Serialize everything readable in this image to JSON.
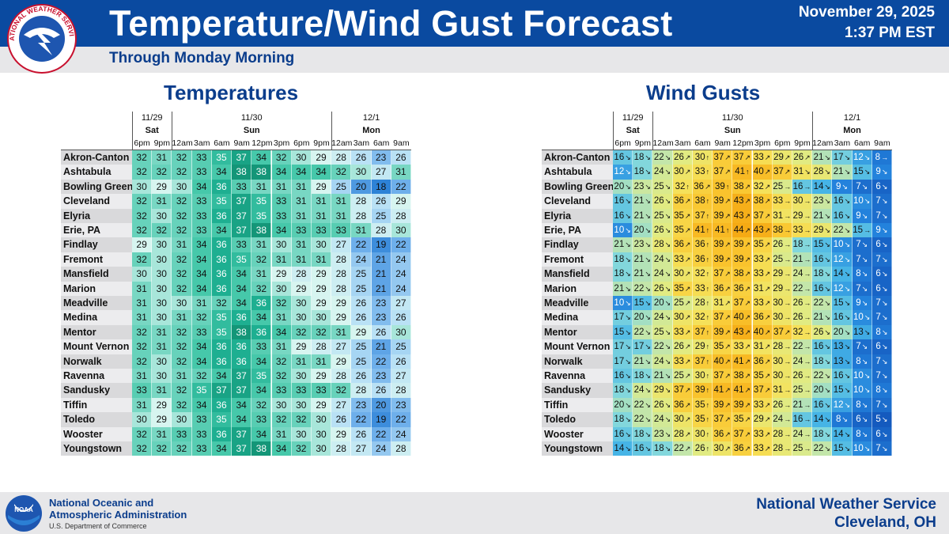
{
  "header": {
    "title": "Temperature/Wind Gust Forecast",
    "date": "November 29, 2025",
    "time": "1:37 PM EST",
    "subtitle": "Through Monday Morning",
    "logo_text": "NATIONAL WEATHER SERVICE"
  },
  "sections": {
    "temps_title": "Temperatures",
    "gusts_title": "Wind Gusts"
  },
  "days": [
    {
      "date": "11/29",
      "day": "Sat",
      "span": 2
    },
    {
      "date": "11/30",
      "day": "Sun",
      "span": 8
    },
    {
      "date": "12/1",
      "day": "Mon",
      "span": 4
    }
  ],
  "hours": [
    "6pm",
    "9pm",
    "12am",
    "3am",
    "6am",
    "9am",
    "12pm",
    "3pm",
    "6pm",
    "9pm",
    "12am",
    "3am",
    "6am",
    "9am"
  ],
  "cities": [
    "Akron-Canton",
    "Ashtabula",
    "Bowling Green",
    "Cleveland",
    "Elyria",
    "Erie, PA",
    "Findlay",
    "Fremont",
    "Mansfield",
    "Marion",
    "Meadville",
    "Medina",
    "Mentor",
    "Mount Vernon",
    "Norwalk",
    "Ravenna",
    "Sandusky",
    "Tiffin",
    "Toledo",
    "Wooster",
    "Youngstown"
  ],
  "temperatures": [
    [
      32,
      31,
      32,
      33,
      35,
      37,
      34,
      32,
      30,
      29,
      28,
      26,
      23,
      26
    ],
    [
      32,
      32,
      32,
      33,
      34,
      38,
      38,
      34,
      34,
      34,
      32,
      30,
      27,
      31
    ],
    [
      30,
      29,
      30,
      34,
      36,
      33,
      31,
      31,
      31,
      29,
      25,
      20,
      18,
      22
    ],
    [
      32,
      31,
      32,
      33,
      35,
      37,
      35,
      33,
      31,
      31,
      31,
      28,
      26,
      29
    ],
    [
      32,
      30,
      32,
      33,
      36,
      37,
      35,
      33,
      31,
      31,
      31,
      28,
      25,
      28
    ],
    [
      32,
      32,
      32,
      33,
      34,
      37,
      38,
      34,
      33,
      33,
      33,
      31,
      28,
      30
    ],
    [
      29,
      30,
      31,
      34,
      36,
      33,
      31,
      30,
      31,
      30,
      27,
      22,
      19,
      22
    ],
    [
      32,
      30,
      32,
      34,
      36,
      35,
      32,
      31,
      31,
      31,
      28,
      24,
      21,
      24
    ],
    [
      30,
      30,
      32,
      34,
      36,
      34,
      31,
      29,
      28,
      29,
      28,
      25,
      21,
      24
    ],
    [
      31,
      30,
      32,
      34,
      36,
      34,
      32,
      30,
      29,
      29,
      28,
      25,
      21,
      24
    ],
    [
      31,
      30,
      30,
      31,
      32,
      34,
      36,
      32,
      30,
      29,
      29,
      26,
      23,
      27
    ],
    [
      31,
      30,
      31,
      32,
      35,
      36,
      34,
      31,
      30,
      30,
      29,
      26,
      23,
      26
    ],
    [
      32,
      31,
      32,
      33,
      35,
      38,
      36,
      34,
      32,
      32,
      31,
      29,
      26,
      30
    ],
    [
      32,
      31,
      32,
      34,
      36,
      36,
      33,
      31,
      29,
      28,
      27,
      25,
      21,
      25
    ],
    [
      32,
      30,
      32,
      34,
      36,
      36,
      34,
      32,
      31,
      31,
      29,
      25,
      22,
      26
    ],
    [
      31,
      30,
      31,
      32,
      34,
      37,
      35,
      32,
      30,
      29,
      28,
      26,
      23,
      27
    ],
    [
      33,
      31,
      32,
      35,
      37,
      37,
      34,
      33,
      33,
      33,
      32,
      28,
      26,
      28
    ],
    [
      31,
      29,
      32,
      34,
      36,
      34,
      32,
      30,
      30,
      29,
      27,
      23,
      20,
      23
    ],
    [
      30,
      29,
      30,
      33,
      35,
      34,
      33,
      32,
      32,
      30,
      26,
      22,
      19,
      22
    ],
    [
      32,
      31,
      33,
      33,
      36,
      37,
      34,
      31,
      30,
      30,
      29,
      26,
      22,
      24
    ],
    [
      32,
      32,
      32,
      33,
      34,
      37,
      38,
      34,
      32,
      30,
      28,
      27,
      24,
      28
    ]
  ],
  "gusts": [
    [
      16,
      18,
      22,
      26,
      30,
      37,
      37,
      33,
      29,
      26,
      21,
      17,
      12,
      8
    ],
    [
      12,
      18,
      24,
      30,
      33,
      37,
      41,
      40,
      37,
      31,
      28,
      21,
      15,
      9
    ],
    [
      20,
      23,
      25,
      32,
      36,
      39,
      38,
      32,
      25,
      16,
      14,
      9,
      7,
      6
    ],
    [
      16,
      21,
      26,
      36,
      38,
      39,
      43,
      38,
      33,
      30,
      23,
      16,
      10,
      7
    ],
    [
      16,
      21,
      25,
      35,
      37,
      39,
      43,
      37,
      31,
      29,
      21,
      16,
      9,
      7
    ],
    [
      10,
      20,
      26,
      35,
      41,
      41,
      44,
      43,
      38,
      33,
      29,
      22,
      15,
      9
    ],
    [
      21,
      23,
      28,
      36,
      36,
      39,
      39,
      35,
      26,
      18,
      15,
      10,
      7,
      6
    ],
    [
      18,
      21,
      24,
      33,
      36,
      39,
      39,
      33,
      25,
      21,
      16,
      12,
      7,
      7
    ],
    [
      18,
      21,
      24,
      30,
      32,
      37,
      38,
      33,
      29,
      24,
      18,
      14,
      8,
      6
    ],
    [
      21,
      22,
      26,
      35,
      33,
      36,
      36,
      31,
      29,
      22,
      16,
      12,
      7,
      6
    ],
    [
      10,
      15,
      20,
      25,
      28,
      31,
      37,
      33,
      30,
      26,
      22,
      15,
      9,
      7
    ],
    [
      17,
      20,
      24,
      30,
      32,
      37,
      40,
      36,
      30,
      26,
      21,
      16,
      10,
      7
    ],
    [
      15,
      22,
      25,
      33,
      37,
      39,
      43,
      40,
      37,
      32,
      26,
      20,
      13,
      8
    ],
    [
      17,
      17,
      22,
      26,
      29,
      35,
      33,
      31,
      28,
      22,
      16,
      13,
      7,
      6
    ],
    [
      17,
      21,
      24,
      33,
      37,
      40,
      41,
      36,
      30,
      24,
      18,
      13,
      8,
      7
    ],
    [
      16,
      18,
      21,
      25,
      30,
      37,
      38,
      35,
      30,
      26,
      22,
      16,
      10,
      7
    ],
    [
      18,
      24,
      29,
      37,
      39,
      41,
      41,
      37,
      31,
      25,
      20,
      15,
      10,
      8
    ],
    [
      20,
      22,
      26,
      36,
      35,
      39,
      39,
      33,
      26,
      21,
      16,
      12,
      8,
      7
    ],
    [
      18,
      22,
      24,
      30,
      35,
      37,
      35,
      29,
      24,
      16,
      14,
      8,
      6,
      5
    ],
    [
      16,
      18,
      23,
      28,
      30,
      36,
      37,
      33,
      28,
      24,
      18,
      14,
      8,
      6
    ],
    [
      14,
      16,
      18,
      22,
      26,
      30,
      36,
      33,
      28,
      25,
      22,
      15,
      10,
      7
    ]
  ],
  "gust_arrow_rows": [
    [
      "↘",
      "↘",
      "↘",
      "↗",
      "↑",
      "↗",
      "↗",
      "↗",
      "↗",
      "↗",
      "↘",
      "↘",
      "↘",
      "→"
    ],
    [
      "↘",
      "↘",
      "↘",
      "↗",
      "↑",
      "↗",
      "↑",
      "↗",
      "↗",
      "↘",
      "↘",
      "↘",
      "↘",
      "↘"
    ],
    [
      "↘",
      "↘",
      "↘",
      "↑",
      "↗",
      "↑",
      "↗",
      "↗",
      "→",
      "→",
      "↘",
      "↘",
      "↘",
      "↘"
    ],
    [
      "↘",
      "↘",
      "↘",
      "↗",
      "↑",
      "↗",
      "↗",
      "↗",
      "→",
      "→",
      "↘",
      "↘",
      "↘",
      "↘"
    ],
    [
      "↘",
      "↘",
      "↘",
      "↗",
      "↑",
      "↗",
      "↗",
      "↗",
      "→",
      "→",
      "↘",
      "↘",
      "↘",
      "↘"
    ],
    [
      "↘",
      "↘",
      "↘",
      "↗",
      "↑",
      "↑",
      "↗",
      "↗",
      "→",
      "→",
      "↘",
      "↘",
      "→",
      "↘"
    ],
    [
      "↘",
      "↘",
      "↘",
      "↗",
      "↑",
      "↗",
      "↗",
      "↗",
      "→",
      "→",
      "↘",
      "↘",
      "↘",
      "↘"
    ],
    [
      "↘",
      "↘",
      "↘",
      "↗",
      "↑",
      "↗",
      "↗",
      "↗",
      "→",
      "→",
      "↘",
      "↘",
      "↘",
      "↘"
    ],
    [
      "↘",
      "↘",
      "↘",
      "↗",
      "↑",
      "↗",
      "↗",
      "↗",
      "→",
      "→",
      "↘",
      "↘",
      "↘",
      "↘"
    ],
    [
      "↘",
      "↘",
      "↘",
      "↗",
      "↑",
      "↗",
      "↗",
      "↗",
      "→",
      "→",
      "↘",
      "↘",
      "↘",
      "↘"
    ],
    [
      "↘",
      "↘",
      "↘",
      "↗",
      "↑",
      "↗",
      "↗",
      "↗",
      "→",
      "→",
      "↘",
      "↘",
      "↘",
      "↘"
    ],
    [
      "↘",
      "↘",
      "↘",
      "↗",
      "↑",
      "↗",
      "↗",
      "↗",
      "→",
      "→",
      "↘",
      "↘",
      "↘",
      "↘"
    ],
    [
      "↘",
      "↘",
      "↘",
      "↗",
      "↑",
      "↗",
      "↗",
      "↗",
      "↗",
      "→",
      "↘",
      "↘",
      "↘",
      "↘"
    ],
    [
      "↘",
      "↘",
      "↘",
      "↗",
      "↑",
      "↗",
      "↗",
      "↗",
      "→",
      "→",
      "↘",
      "↘",
      "↘",
      "↘"
    ],
    [
      "↘",
      "↘",
      "↘",
      "↗",
      "↑",
      "↗",
      "↗",
      "↗",
      "→",
      "→",
      "↘",
      "↘",
      "↘",
      "↘"
    ],
    [
      "↘",
      "↘",
      "↘",
      "↗",
      "↑",
      "↗",
      "↗",
      "↗",
      "→",
      "→",
      "↘",
      "↘",
      "↘",
      "↘"
    ],
    [
      "↘",
      "↘",
      "↘",
      "↗",
      "↑",
      "↗",
      "↗",
      "↗",
      "→",
      "→",
      "↘",
      "↘",
      "↘",
      "↘"
    ],
    [
      "↘",
      "↘",
      "↘",
      "↗",
      "↑",
      "↗",
      "↗",
      "↗",
      "→",
      "→",
      "↘",
      "↘",
      "↘",
      "↘"
    ],
    [
      "↘",
      "↘",
      "↘",
      "↗",
      "↑",
      "↗",
      "↗",
      "↗",
      "→",
      "→",
      "↘",
      "↘",
      "↘",
      "↘"
    ],
    [
      "↘",
      "↘",
      "↘",
      "↗",
      "↑",
      "↗",
      "↗",
      "↗",
      "→",
      "→",
      "↘",
      "↘",
      "↘",
      "↘"
    ],
    [
      "↘",
      "↘",
      "↘",
      "↗",
      "↑",
      "↗",
      "↗",
      "↗",
      "→",
      "→",
      "↘",
      "↘",
      "↘",
      "↘"
    ]
  ],
  "colors": {
    "header_bg": "#0a4aa0",
    "title_text": "#ffffff",
    "accent_text": "#0b3d8c",
    "band_bg": "#e7e7e9"
  },
  "footer": {
    "noaa_line1": "National Oceanic and",
    "noaa_line2": "Atmospheric Administration",
    "noaa_dept": "U.S. Department of Commerce",
    "office_line1": "National Weather Service",
    "office_line2": "Cleveland, OH",
    "noaa_logo_text": "NOAA"
  }
}
